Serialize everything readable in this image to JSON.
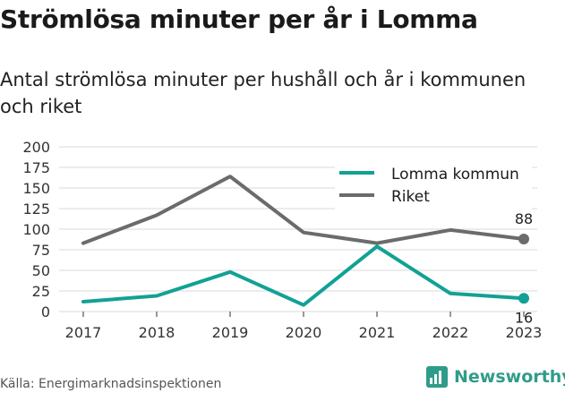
{
  "title": "Strömlösa minuter per år i Lomma",
  "subtitle": "Antal strömlösa minuter per hushåll och år i kommunen och riket",
  "source": "Källa: Energimarknadsinspektionen",
  "brand": "Newsworthy",
  "colors": {
    "lomma": "#12a195",
    "riket": "#6b6b6b",
    "grid": "#d9d9d9",
    "brand": "#2f9c89"
  },
  "chart_data": {
    "type": "line",
    "x": [
      "2017",
      "2018",
      "2019",
      "2020",
      "2021",
      "2022",
      "2023"
    ],
    "ylim": [
      0,
      200
    ],
    "yticks": [
      0,
      25,
      50,
      75,
      100,
      125,
      150,
      175,
      200
    ],
    "grid": true,
    "legend": "top-right",
    "xlabel": "",
    "ylabel": "",
    "series": [
      {
        "name": "Lomma kommun",
        "values": [
          12,
          19,
          48,
          8,
          79,
          22,
          16
        ],
        "color": "#12a195",
        "end_label": "16"
      },
      {
        "name": "Riket",
        "values": [
          83,
          117,
          164,
          96,
          83,
          99,
          88
        ],
        "color": "#6b6b6b",
        "end_label": "88"
      }
    ]
  }
}
